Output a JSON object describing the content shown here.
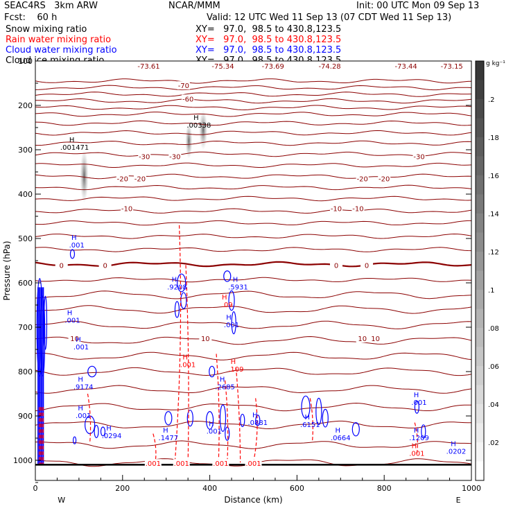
{
  "header": {
    "model": "SEAC4RS   3km ARW",
    "org": "NCAR/MMM",
    "init": "Init: 00 UTC Mon 09 Sep 13",
    "fcst": "Fcst:    60 h",
    "valid": "Valid: 12 UTC Wed 11 Sep 13 (07 CDT Wed 11 Sep 13)"
  },
  "legend": [
    {
      "name": "Snow mixing ratio",
      "xy": "XY=   97.0,  98.5 to 430.8,123.5",
      "color": "#000000"
    },
    {
      "name": "Rain water mixing ratio",
      "xy": "XY=   97.0,  98.5 to 430.8,123.5",
      "color": "#ff0000"
    },
    {
      "name": "Cloud water mixing ratio",
      "xy": "XY=   97.0,  98.5 to 430.8,123.5",
      "color": "#0000ff"
    },
    {
      "name": "Cloud ice mixing ratio",
      "xy": "XY=   97.0,  98.5 to 430.8,123.5",
      "color": "#000000"
    }
  ],
  "chart_data": {
    "type": "cross-section contour",
    "xlabel": "Distance (km)",
    "ylabel": "Pressure (hPa)",
    "xlim": [
      0,
      1000
    ],
    "ylim": [
      1050,
      100
    ],
    "x_ticks": [
      "0",
      "200",
      "400",
      "600",
      "800",
      "1000"
    ],
    "y_ticks": [
      "100",
      "200",
      "300",
      "400",
      "500",
      "600",
      "700",
      "800",
      "900",
      "1000"
    ],
    "direction_labels": {
      "west": "W",
      "east": "E"
    },
    "temperature_contour_color": "#8b0000",
    "temperature_levels": [
      {
        "label": "-70",
        "p": 155,
        "label_x": [
          340
        ]
      },
      {
        "label": "-60",
        "p": 185,
        "label_x": [
          350
        ]
      },
      {
        "label": "-30",
        "p": 315,
        "label_x": [
          250,
          320,
          880
        ]
      },
      {
        "label": "-20",
        "p": 365,
        "label_x": [
          200,
          240,
          750,
          800
        ]
      },
      {
        "label": "-10",
        "p": 432,
        "label_x": [
          210,
          690,
          740
        ]
      },
      {
        "label": "0",
        "p": 560,
        "label_x": [
          60,
          160,
          690,
          760
        ]
      },
      {
        "label": "10",
        "p": 725,
        "label_x": [
          90,
          390,
          750,
          780
        ]
      }
    ],
    "top_values": [
      {
        "x": 260,
        "text": "-73.61"
      },
      {
        "x": 430,
        "text": "-75.34"
      },
      {
        "x": 545,
        "text": "-73.69"
      },
      {
        "x": 675,
        "text": "-74.28"
      },
      {
        "x": 850,
        "text": "-73.44"
      },
      {
        "x": 955,
        "text": "-73.15"
      }
    ],
    "maxima": [
      {
        "x": 90,
        "p": 300,
        "text": ".001471",
        "color": "#000000"
      },
      {
        "x": 375,
        "p": 250,
        "text": ".00338",
        "color": "#000000"
      },
      {
        "x": 95,
        "p": 520,
        "text": ".001",
        "color": "#0000ff"
      },
      {
        "x": 85,
        "p": 690,
        "text": ".001",
        "color": "#0000ff"
      },
      {
        "x": 105,
        "p": 750,
        "text": ".001",
        "color": "#0000ff"
      },
      {
        "x": 325,
        "p": 615,
        "text": ".9208",
        "color": "#0000ff"
      },
      {
        "x": 465,
        "p": 615,
        "text": ".5931",
        "color": "#0000ff"
      },
      {
        "x": 440,
        "p": 655,
        "text": ".09",
        "color": "#ff0000"
      },
      {
        "x": 450,
        "p": 700,
        "text": ".001",
        "color": "#0000ff"
      },
      {
        "x": 350,
        "p": 790,
        "text": ".001",
        "color": "#ff0000"
      },
      {
        "x": 110,
        "p": 840,
        "text": ".9174",
        "color": "#0000ff"
      },
      {
        "x": 435,
        "p": 840,
        "text": ".2685",
        "color": "#0000ff"
      },
      {
        "x": 460,
        "p": 800,
        "text": ".109",
        "color": "#ff0000"
      },
      {
        "x": 110,
        "p": 905,
        "text": ".001",
        "color": "#0000ff"
      },
      {
        "x": 175,
        "p": 950,
        "text": ".0294",
        "color": "#0000ff"
      },
      {
        "x": 305,
        "p": 955,
        "text": ".1477",
        "color": "#0000ff"
      },
      {
        "x": 410,
        "p": 940,
        "text": ".001",
        "color": "#0000ff"
      },
      {
        "x": 510,
        "p": 920,
        "text": ".0881",
        "color": "#0000ff"
      },
      {
        "x": 630,
        "p": 925,
        "text": ".6151",
        "color": "#0000ff"
      },
      {
        "x": 700,
        "p": 955,
        "text": ".0664",
        "color": "#0000ff"
      },
      {
        "x": 880,
        "p": 955,
        "text": ".1209",
        "color": "#0000ff"
      },
      {
        "x": 965,
        "p": 985,
        "text": ".0202",
        "color": "#0000ff"
      },
      {
        "x": 875,
        "p": 990,
        "text": ".001",
        "color": "#ff0000"
      },
      {
        "x": 880,
        "p": 875,
        "text": ".001",
        "color": "#0000ff"
      }
    ],
    "bottom_labels": [
      {
        "x": 270,
        "text": ".001"
      },
      {
        "x": 335,
        "text": ".001"
      },
      {
        "x": 425,
        "text": ".001"
      },
      {
        "x": 500,
        "text": ".001"
      }
    ],
    "colorbar": {
      "unit": "g kg⁻¹",
      "ticks": [
        ".2",
        ".18",
        ".16",
        ".14",
        ".12",
        ".1",
        ".08",
        ".06",
        ".04",
        ".02"
      ],
      "min": 0,
      "max": 0.22
    }
  }
}
